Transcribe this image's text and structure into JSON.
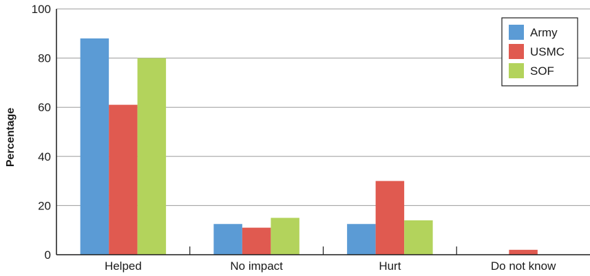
{
  "chart_data": {
    "type": "bar",
    "title": "",
    "xlabel": "",
    "ylabel": "Percentage",
    "categories": [
      "Helped",
      "No impact",
      "Hurt",
      "Do not know"
    ],
    "series": [
      {
        "name": "Army",
        "color": "#5b9bd5",
        "values": [
          88,
          12.5,
          12.5,
          0
        ]
      },
      {
        "name": "USMC",
        "color": "#e05a50",
        "values": [
          61,
          11,
          30,
          2
        ]
      },
      {
        "name": "SOF",
        "color": "#b3d35c",
        "values": [
          80,
          15,
          14,
          0
        ]
      }
    ],
    "ylim": [
      0,
      100
    ],
    "yticks": [
      "0",
      "20",
      "40",
      "60",
      "80",
      "100"
    ],
    "grid": true,
    "legend_position": "top-right"
  }
}
